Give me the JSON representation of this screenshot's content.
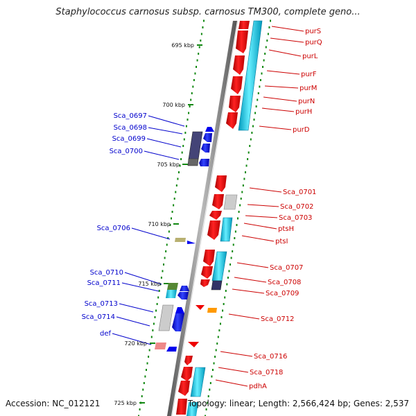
{
  "title": "Staphylococcus carnosus subsp. carnosus TM300, complete geno...",
  "footer": {
    "accession": "Accession: NC_012121",
    "summary": "Topology: linear; Length: 2,566,424 bp; Genes: 2,537"
  },
  "colors": {
    "forward_gene": "#ee0000",
    "reverse_gene": "#0000ee",
    "cds_highlight": "#22ccee",
    "dark_gene": "#333366",
    "spine": "#888888",
    "tick": "#118811",
    "label_left": "#0000cc",
    "label_right": "#cc0000"
  },
  "kbp_markers": [
    "695 kbp",
    "700 kbp",
    "705 kbp",
    "710 kbp",
    "715 kbp",
    "720 kbp",
    "725 kbp"
  ],
  "left_genes": [
    "Sca_0697",
    "Sca_0698",
    "Sca_0699",
    "Sca_0700",
    "Sca_0706",
    "Sca_0710",
    "Sca_0711",
    "Sca_0713",
    "Sca_0714",
    "def"
  ],
  "right_genes": [
    "purS",
    "purQ",
    "purL",
    "purF",
    "purM",
    "purN",
    "purH",
    "purD",
    "Sca_0701",
    "Sca_0702",
    "Sca_0703",
    "ptsH",
    "ptsI",
    "Sca_0707",
    "Sca_0708",
    "Sca_0709",
    "Sca_0712",
    "Sca_0716",
    "Sca_0718",
    "pdhA"
  ]
}
